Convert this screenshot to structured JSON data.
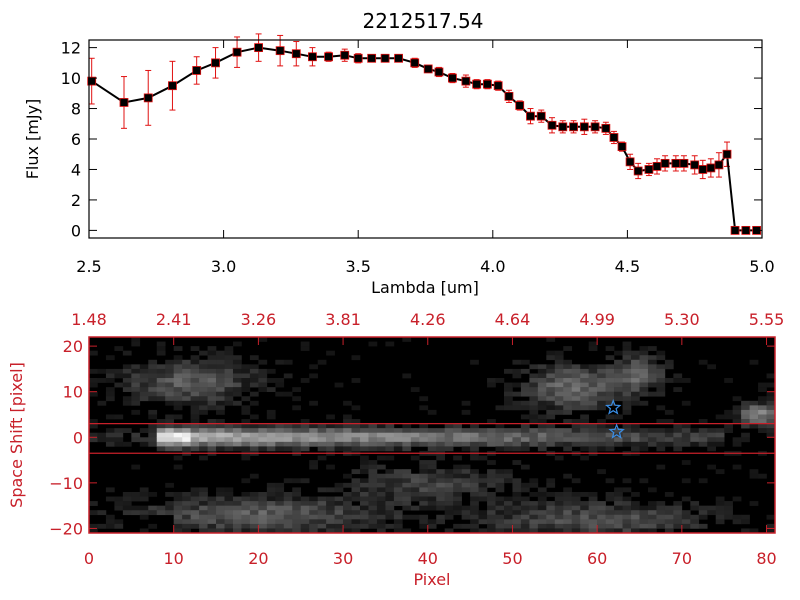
{
  "title": "2212517.54",
  "colors": {
    "line": "#000000",
    "error": "#e01010",
    "accent": "#c8202a",
    "star": "#3a8ee6",
    "image_bg": "#000000"
  },
  "chart_data": [
    {
      "type": "line",
      "xlabel": "Lambda [um]",
      "ylabel": "Flux [mJy]",
      "xlim": [
        2.5,
        5.0
      ],
      "ylim": [
        -0.5,
        12.5
      ],
      "x_ticks": [
        2.5,
        3.0,
        3.5,
        4.0,
        4.5,
        5.0
      ],
      "x_tick_labels": [
        "2.5",
        "3.0",
        "3.5",
        "4.0",
        "4.5",
        "5.0"
      ],
      "y_ticks": [
        0,
        2,
        4,
        6,
        8,
        10,
        12
      ],
      "y_tick_labels": [
        "0",
        "2",
        "4",
        "6",
        "8",
        "10",
        "12"
      ],
      "grid": false,
      "series": [
        {
          "x": [
            2.51,
            2.63,
            2.72,
            2.81,
            2.9,
            2.97,
            3.05,
            3.13,
            3.21,
            3.27,
            3.33,
            3.39,
            3.45,
            3.5,
            3.55,
            3.6,
            3.65,
            3.71,
            3.76,
            3.8,
            3.85,
            3.9,
            3.94,
            3.98,
            4.02,
            4.06,
            4.1,
            4.14,
            4.18,
            4.22,
            4.26,
            4.3,
            4.34,
            4.38,
            4.42,
            4.45,
            4.48,
            4.51,
            4.54,
            4.58,
            4.61,
            4.64,
            4.68,
            4.71,
            4.75,
            4.78,
            4.81,
            4.84,
            4.87,
            4.9,
            4.94,
            4.98
          ],
          "y": [
            9.8,
            8.4,
            8.7,
            9.5,
            10.5,
            11.0,
            11.7,
            12.0,
            11.8,
            11.6,
            11.4,
            11.4,
            11.5,
            11.3,
            11.3,
            11.3,
            11.3,
            11.0,
            10.6,
            10.4,
            10.0,
            9.8,
            9.6,
            9.6,
            9.5,
            8.8,
            8.2,
            7.5,
            7.5,
            6.9,
            6.8,
            6.8,
            6.8,
            6.8,
            6.7,
            6.1,
            5.5,
            4.5,
            3.9,
            4.0,
            4.2,
            4.4,
            4.4,
            4.4,
            4.3,
            4.0,
            4.1,
            4.3,
            5.0,
            0.0,
            0.0,
            0.0
          ],
          "err": [
            1.5,
            1.7,
            1.8,
            1.6,
            0.9,
            1.0,
            1.0,
            0.9,
            1.0,
            0.8,
            0.6,
            0.3,
            0.4,
            0.3,
            0.2,
            0.2,
            0.2,
            0.3,
            0.2,
            0.3,
            0.3,
            0.4,
            0.3,
            0.3,
            0.3,
            0.4,
            0.3,
            0.5,
            0.4,
            0.5,
            0.4,
            0.4,
            0.5,
            0.4,
            0.4,
            0.4,
            0.3,
            0.5,
            0.5,
            0.4,
            0.5,
            0.5,
            0.5,
            0.5,
            0.6,
            0.6,
            0.6,
            0.8,
            0.8,
            0.1,
            0.1,
            0.1
          ]
        }
      ]
    },
    {
      "type": "heatmap",
      "xlabel": "Pixel",
      "ylabel": "Space Shift [pixel]",
      "xlim": [
        0,
        81
      ],
      "ylim": [
        -21,
        22
      ],
      "x_ticks": [
        0,
        10,
        20,
        30,
        40,
        50,
        60,
        70,
        80
      ],
      "x_tick_labels": [
        "0",
        "10",
        "20",
        "30",
        "40",
        "50",
        "60",
        "70",
        "80"
      ],
      "y_ticks": [
        -20,
        -10,
        0,
        10,
        20
      ],
      "y_tick_labels": [
        "−20",
        "−10",
        "0",
        "10",
        "20"
      ],
      "top_tick_labels": [
        "1.48",
        "2.41",
        "3.26",
        "3.81",
        "4.26",
        "4.64",
        "4.99",
        "5.30",
        "5.55"
      ],
      "extraction_window": [
        -3.5,
        3.0
      ],
      "stars": [
        {
          "pixel": 61.9,
          "shift": 6.5
        },
        {
          "pixel": 62.3,
          "shift": 1.2
        }
      ]
    }
  ]
}
